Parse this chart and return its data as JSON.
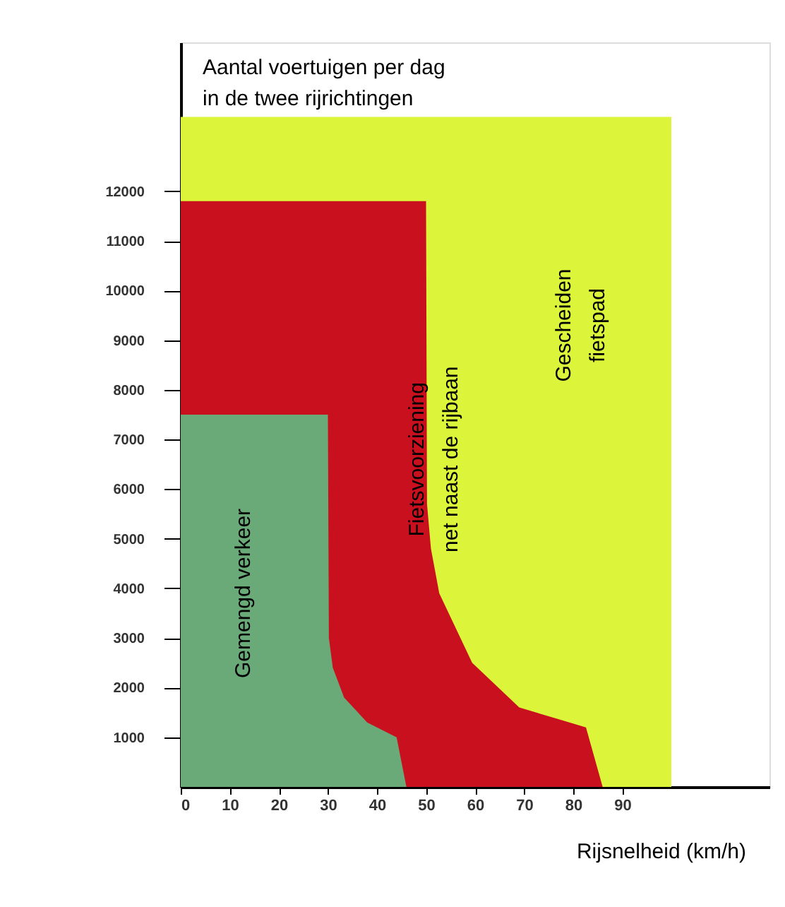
{
  "chart_data": {
    "type": "area",
    "ylabel": "Aantal voertuigen per dag in de twee rijrichtingen",
    "xlabel": "Rijsnelheid (km/h)",
    "series": [
      {
        "name": "Gescheiden fietspad",
        "color": "#dcf53a",
        "x": [
          0,
          100
        ],
        "values": [
          13500,
          13500
        ]
      },
      {
        "name": "Fietsvoorziening net naast de rijbaan",
        "color": "#c8101e",
        "x": [
          0,
          50,
          50.2,
          51,
          52.7,
          59.4,
          69,
          82.6,
          86
        ],
        "values": [
          11800,
          11800,
          5700,
          4800,
          3900,
          2500,
          1600,
          1200,
          0
        ]
      },
      {
        "name": "Gemengd verkeer",
        "color": "#6aaa78",
        "x": [
          0,
          30,
          30.2,
          31,
          33.3,
          38,
          44,
          46
        ],
        "values": [
          7500,
          7500,
          3000,
          2400,
          1800,
          1300,
          1000,
          0
        ]
      }
    ],
    "xlim": [
      0,
      120
    ],
    "xticks": [
      0,
      10,
      20,
      30,
      40,
      50,
      60,
      70,
      80,
      90
    ],
    "ylim": [
      0,
      15000
    ],
    "yticks": [
      1000,
      2000,
      3000,
      4000,
      5000,
      6000,
      7000,
      8000,
      9000,
      10000,
      11000,
      12000
    ],
    "grid": false
  }
}
